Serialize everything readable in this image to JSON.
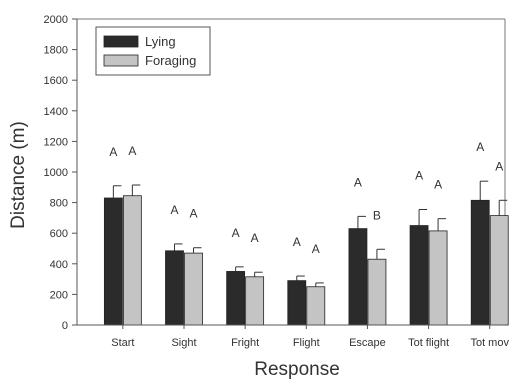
{
  "chart_data": {
    "type": "bar",
    "xlabel": "Response",
    "ylabel": "Distance (m)",
    "ylim": [
      0,
      2000
    ],
    "yticks": [
      0,
      200,
      400,
      600,
      800,
      1000,
      1200,
      1400,
      1600,
      1800,
      2000
    ],
    "grid": false,
    "legend_position": "top-left",
    "categories": [
      "Start",
      "Sight",
      "Fright",
      "Flight",
      "Escape",
      "Tot flight",
      "Tot mov"
    ],
    "series": [
      {
        "name": "Lying",
        "color": "#2b2b2b",
        "values": [
          830,
          485,
          350,
          290,
          630,
          650,
          815
        ],
        "errors": [
          80,
          45,
          30,
          30,
          80,
          105,
          125
        ],
        "letters": [
          "A",
          "A",
          "A",
          "A",
          "A",
          "A",
          "A"
        ]
      },
      {
        "name": "Foraging",
        "color": "#c4c4c4",
        "values": [
          845,
          470,
          315,
          250,
          430,
          615,
          715
        ],
        "errors": [
          70,
          35,
          30,
          25,
          65,
          80,
          100
        ],
        "letters": [
          "A",
          "A",
          "A",
          "A",
          "B",
          "A",
          "A"
        ]
      }
    ]
  }
}
